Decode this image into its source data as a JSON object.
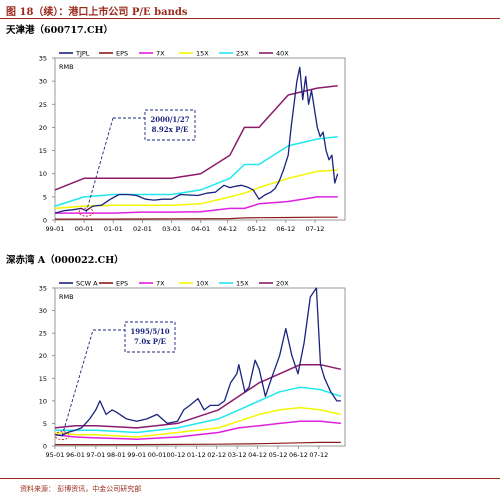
{
  "header": {
    "figure_title": "图 18（续）：港口上市公司 P/E bands"
  },
  "footer": {
    "source": "资料来源：  彭博资讯，中金公司研究部"
  },
  "colors": {
    "price": "#1a237e",
    "eps": "#8b1a1a",
    "band1": "#e020e0",
    "band2": "#f5f500",
    "band3": "#20e8f0",
    "band4": "#8b1a6b",
    "brand": "#9b2a1c"
  },
  "chart_data": [
    {
      "type": "line",
      "title": "天津港（600717.CH）",
      "ylabel": "RMB",
      "ylim": [
        0,
        35
      ],
      "yticks": [
        "0",
        "5",
        "10",
        "15",
        "20",
        "25",
        "30",
        "35"
      ],
      "xticks": [
        "99-01",
        "00-01",
        "01-01",
        "02-01",
        "03-01",
        "04-01",
        "04-12",
        "05-12",
        "06-12",
        "07-12"
      ],
      "x_positions": [
        0,
        1,
        2,
        3,
        4,
        5,
        5.92,
        6.92,
        7.92,
        8.92
      ],
      "xlim": [
        0,
        9.95
      ],
      "legend": [
        "TJPL",
        "EPS",
        "7X",
        "15X",
        "25X",
        "40X"
      ],
      "annotation": {
        "lines": [
          "2000/1/27",
          "8.92x P/E"
        ],
        "x": 1.07,
        "y": 1.7
      },
      "series": [
        {
          "name": "TJPL",
          "x": [
            0,
            0.3,
            0.6,
            0.9,
            1.07,
            1.3,
            1.6,
            1.9,
            2.2,
            2.5,
            2.8,
            3.1,
            3.4,
            3.7,
            4.0,
            4.3,
            4.6,
            4.9,
            5.2,
            5.5,
            5.8,
            6.0,
            6.2,
            6.4,
            6.6,
            6.8,
            7.0,
            7.2,
            7.4,
            7.55,
            7.7,
            7.85,
            8.0,
            8.1,
            8.2,
            8.3,
            8.4,
            8.5,
            8.6,
            8.7,
            8.8,
            8.9,
            9.0,
            9.1,
            9.2,
            9.3,
            9.4,
            9.5,
            9.6,
            9.7
          ],
          "values": [
            1.5,
            2,
            2.2,
            2.5,
            2,
            3,
            3.2,
            4.5,
            5.5,
            5.5,
            5.3,
            4.5,
            4.3,
            4.5,
            4.5,
            5.5,
            5.4,
            5.3,
            5.8,
            6,
            7.5,
            7,
            7.3,
            7.5,
            7.1,
            6.5,
            4.5,
            5.4,
            6,
            6.8,
            8.5,
            11,
            14,
            20,
            25,
            30,
            33,
            26,
            31,
            25,
            28,
            24,
            20,
            18,
            19,
            15,
            13,
            14,
            8,
            10
          ]
        },
        {
          "name": "EPS",
          "x": [
            0,
            2,
            4,
            6,
            6.5,
            7,
            8,
            9,
            9.7
          ],
          "values": [
            0.2,
            0.2,
            0.25,
            0.3,
            0.45,
            0.5,
            0.55,
            0.6,
            0.6
          ]
        },
        {
          "name": "7X",
          "x": [
            0,
            1,
            2,
            3,
            4,
            5,
            6,
            6.5,
            7,
            8,
            9,
            9.7
          ],
          "values": [
            1.5,
            1.5,
            1.5,
            1.7,
            1.7,
            1.8,
            2.5,
            2.5,
            3.5,
            4,
            5,
            5
          ]
        },
        {
          "name": "15X",
          "x": [
            0,
            1,
            2,
            3,
            4,
            5,
            6,
            6.5,
            7,
            8,
            9,
            9.7
          ],
          "values": [
            2.5,
            3,
            3.2,
            3.2,
            3.2,
            3.5,
            5,
            5.8,
            7,
            9,
            10.5,
            10.8
          ]
        },
        {
          "name": "25X",
          "x": [
            0,
            1,
            2,
            3,
            4,
            5,
            6,
            6.5,
            7,
            8,
            9,
            9.7
          ],
          "values": [
            3,
            5,
            5.5,
            5.5,
            5.5,
            6.5,
            9,
            12,
            12,
            16,
            17.5,
            18
          ]
        },
        {
          "name": "40X",
          "x": [
            0,
            1,
            2,
            3,
            4,
            5,
            6,
            6.5,
            7,
            8,
            9,
            9.7
          ],
          "values": [
            6.5,
            9,
            9,
            9,
            9,
            10,
            14,
            20,
            20,
            27,
            28.5,
            29
          ]
        }
      ]
    },
    {
      "type": "line",
      "title": "深赤湾 A（000022.CH）",
      "ylabel": "RMB",
      "ylim": [
        0,
        35
      ],
      "yticks": [
        "0",
        "5",
        "10",
        "15",
        "20",
        "25",
        "30",
        "35"
      ],
      "xticks": [
        "95-01",
        "96-01",
        "97-01",
        "98-01",
        "99-01",
        "00-01",
        "00-12",
        "01-12",
        "02-12",
        "03-12",
        "04-12",
        "05-12",
        "06-12",
        "07-12"
      ],
      "x_positions": [
        0,
        1,
        2,
        3,
        4,
        5,
        5.92,
        6.92,
        7.92,
        8.92,
        9.92,
        10.92,
        11.92,
        12.92
      ],
      "xlim": [
        0,
        14.2
      ],
      "legend": [
        "SCW A",
        "EPS",
        "7X",
        "10X",
        "15X",
        "20X"
      ],
      "annotation": {
        "lines": [
          "1995/5/10",
          "7.0x P/E"
        ],
        "x": 0.35,
        "y": 2.3
      },
      "series": [
        {
          "name": "SCW A",
          "x": [
            0,
            0.35,
            0.6,
            1,
            1.3,
            1.7,
            2,
            2.2,
            2.5,
            2.8,
            3,
            3.5,
            4,
            4.5,
            5,
            5.5,
            6,
            6.3,
            6.6,
            7,
            7.3,
            7.6,
            8,
            8.3,
            8.6,
            8.9,
            9,
            9.3,
            9.5,
            9.8,
            10,
            10.3,
            10.6,
            11,
            11.3,
            11.6,
            11.9,
            12.2,
            12.5,
            12.8,
            13,
            13.2,
            13.5,
            13.8,
            14
          ],
          "values": [
            2.5,
            2.3,
            3,
            3.5,
            4,
            6,
            8,
            10,
            7,
            8,
            7.5,
            6,
            5.5,
            6,
            7,
            5,
            5.5,
            8,
            9,
            10.5,
            8,
            9,
            9,
            10,
            14,
            16,
            18,
            12,
            13,
            19,
            17,
            11,
            15,
            20,
            26,
            20,
            16,
            23,
            33,
            35,
            18,
            15,
            12,
            10,
            10
          ]
        },
        {
          "name": "EPS",
          "x": [
            0,
            4,
            8,
            10,
            12,
            13,
            14
          ],
          "values": [
            0.3,
            0.3,
            0.4,
            0.5,
            0.7,
            0.8,
            0.8
          ]
        },
        {
          "name": "7X",
          "x": [
            0,
            1,
            2,
            4,
            6,
            8,
            9,
            10,
            11,
            12,
            13,
            14
          ],
          "values": [
            2.5,
            2,
            1.8,
            1.5,
            2,
            3,
            4,
            4.5,
            5,
            5.5,
            5.5,
            5
          ]
        },
        {
          "name": "10X",
          "x": [
            0,
            1,
            2,
            4,
            6,
            8,
            9,
            10,
            11,
            12,
            13,
            14
          ],
          "values": [
            3,
            2.5,
            2.5,
            2,
            3,
            4,
            5.5,
            7,
            8,
            8.5,
            8,
            7
          ]
        },
        {
          "name": "15X",
          "x": [
            0,
            1,
            2,
            4,
            6,
            8,
            9,
            10,
            11,
            12,
            13,
            14
          ],
          "values": [
            3.5,
            3.5,
            3.5,
            3,
            4,
            6,
            8,
            10,
            12,
            13,
            12.5,
            11
          ]
        },
        {
          "name": "20X",
          "x": [
            0,
            1,
            2,
            4,
            6,
            8,
            9,
            10,
            11,
            12,
            13,
            14
          ],
          "values": [
            4,
            4.5,
            4.5,
            4,
            5,
            8,
            11,
            14,
            16,
            18,
            18,
            17
          ]
        }
      ]
    }
  ]
}
